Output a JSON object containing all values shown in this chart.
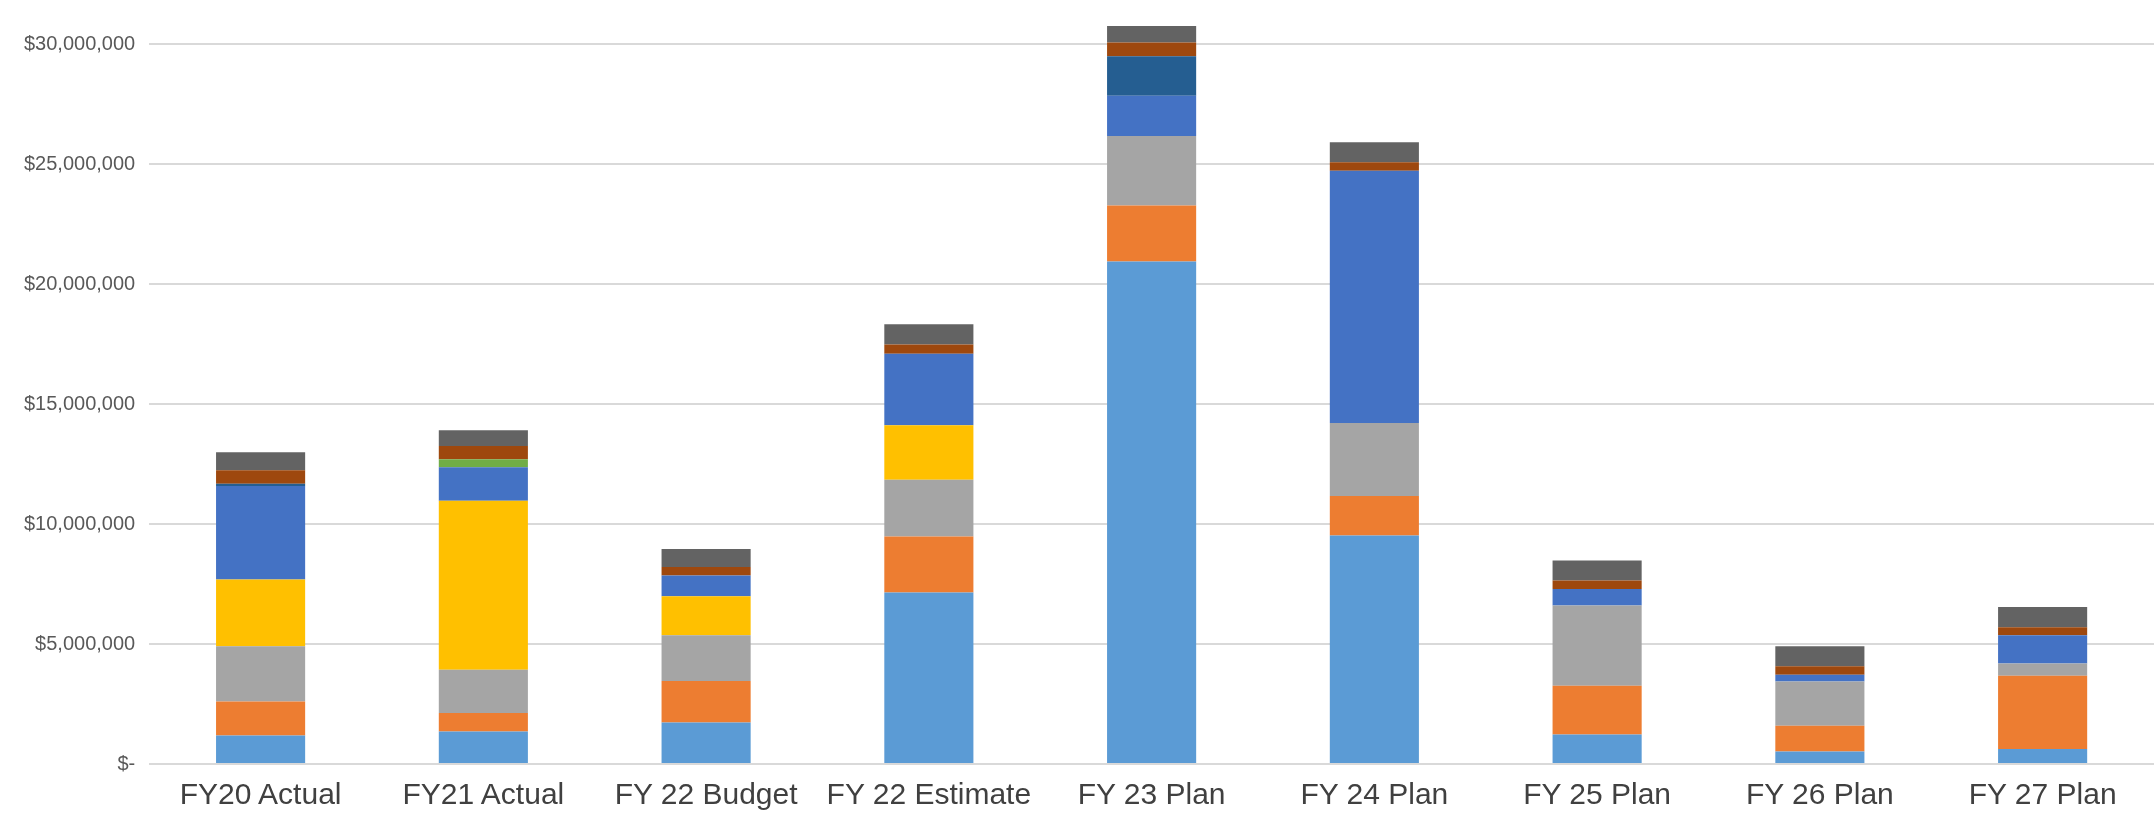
{
  "chart_data": {
    "type": "bar",
    "stacked": true,
    "categories": [
      "FY20 Actual",
      "FY21 Actual",
      "FY 22 Budget",
      "FY 22 Estimate",
      "FY 23 Plan",
      "FY 24 Plan",
      "FY 25 Plan",
      "FY 26 Plan",
      "FY 27 Plan"
    ],
    "series": [
      {
        "color": "#5b9bd5",
        "values": [
          1190000,
          1350000,
          1730000,
          7150000,
          20940000,
          9520000,
          1230000,
          520000,
          620000
        ]
      },
      {
        "color": "#ed7d31",
        "values": [
          1410000,
          780000,
          1730000,
          2330000,
          2330000,
          1650000,
          2030000,
          1070000,
          3060000
        ]
      },
      {
        "color": "#a5a5a5",
        "values": [
          2310000,
          1800000,
          1900000,
          2360000,
          2900000,
          3040000,
          3340000,
          1850000,
          510000
        ]
      },
      {
        "color": "#ffc000",
        "values": [
          2780000,
          7040000,
          1630000,
          2270000,
          0,
          0,
          0,
          0,
          0
        ]
      },
      {
        "color": "#4472c4",
        "values": [
          3890000,
          1390000,
          860000,
          2980000,
          1670000,
          10510000,
          690000,
          280000,
          1170000
        ]
      },
      {
        "color": "#70ad47",
        "values": [
          0,
          340000,
          0,
          0,
          0,
          0,
          0,
          0,
          0
        ]
      },
      {
        "color": "#255e91",
        "values": [
          100000,
          0,
          0,
          0,
          1650000,
          0,
          0,
          0,
          0
        ]
      },
      {
        "color": "#9e480e",
        "values": [
          560000,
          550000,
          360000,
          390000,
          570000,
          350000,
          360000,
          350000,
          340000
        ]
      },
      {
        "color": "#636363",
        "values": [
          750000,
          660000,
          750000,
          840000,
          690000,
          840000,
          830000,
          840000,
          840000
        ]
      }
    ],
    "ylim": [
      0,
      30750000
    ],
    "yticks": [
      {
        "value": 0,
        "label": "$-"
      },
      {
        "value": 5000000,
        "label": "$5,000,000"
      },
      {
        "value": 10000000,
        "label": "$10,000,000"
      },
      {
        "value": 15000000,
        "label": "$15,000,000"
      },
      {
        "value": 20000000,
        "label": "$20,000,000"
      },
      {
        "value": 25000000,
        "label": "$25,000,000"
      },
      {
        "value": 30000000,
        "label": "$30,000,000"
      }
    ],
    "grid": "y",
    "legend": false
  }
}
